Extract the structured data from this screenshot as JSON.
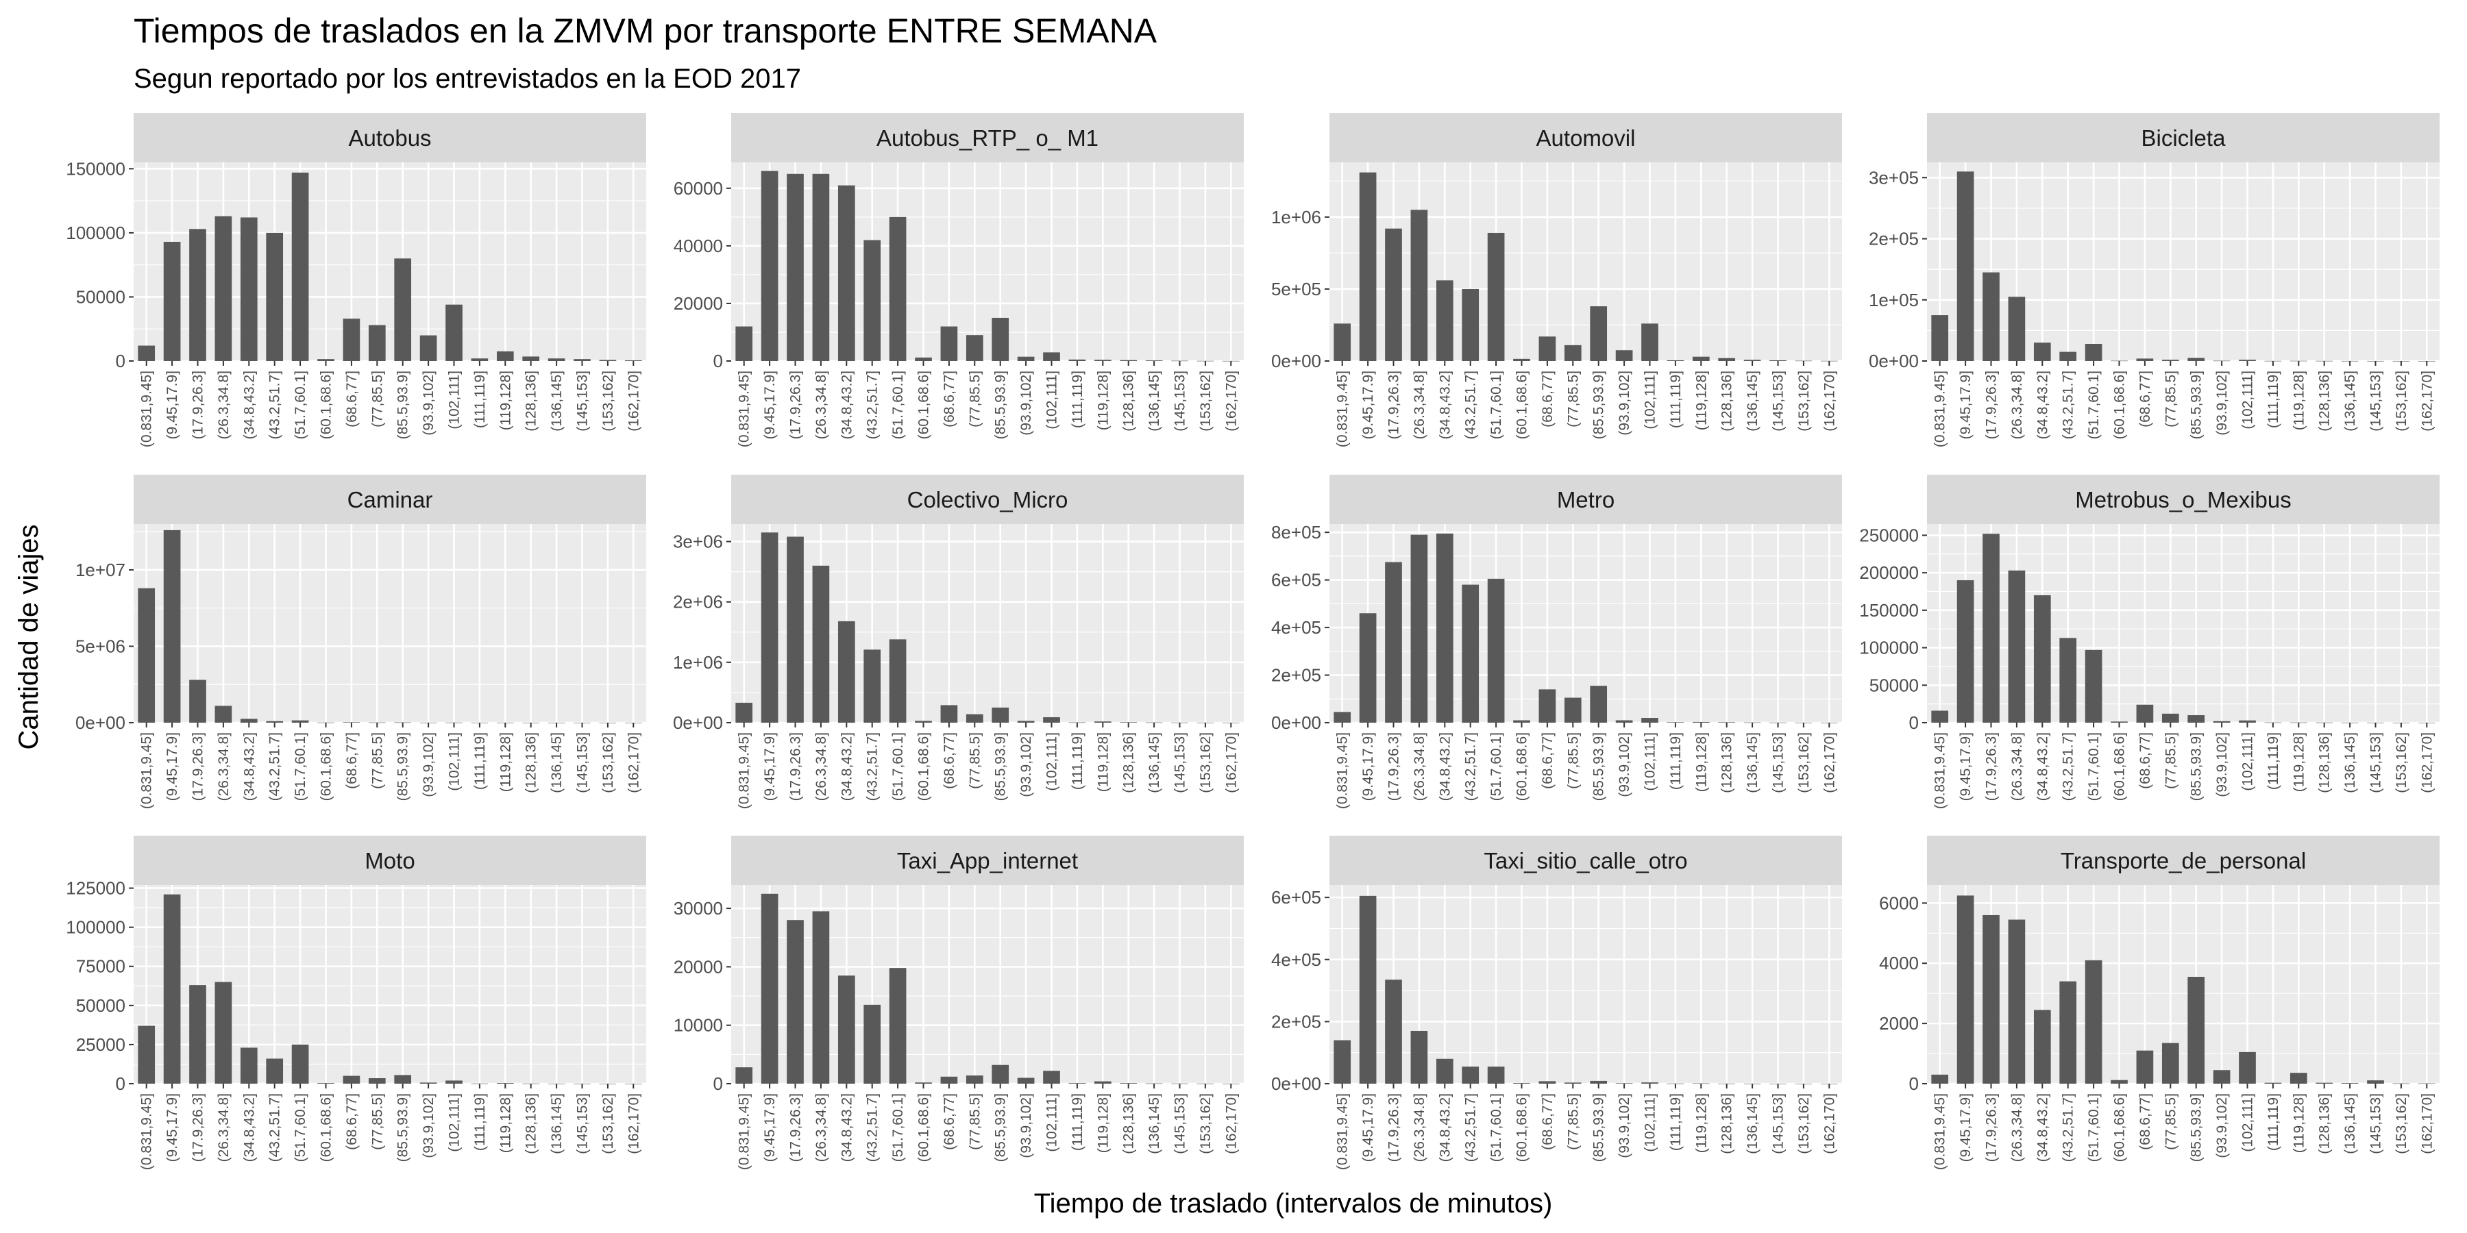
{
  "chart_data": {
    "type": "bar",
    "layout": "facet-grid",
    "title": "Tiempos de traslados en la ZMVM por transporte ENTRE SEMANA",
    "subtitle": "Segun reportado por los entrevistados en la EOD 2017",
    "xlabel": "Tiempo de traslado (intervalos de minutos)",
    "ylabel": "Cantidad de viajes",
    "grid": true,
    "colors": {
      "panel_bg": "#ebebeb",
      "strip_bg": "#d9d9d9",
      "bar": "#595959",
      "grid": "#ffffff"
    },
    "categories": [
      "(0.831,9.45]",
      "(9.45,17.9]",
      "(17.9,26.3]",
      "(26.3,34.8]",
      "(34.8,43.2]",
      "(43.2,51.7]",
      "(51.7,60.1]",
      "(60.1,68.6]",
      "(68.6,77]",
      "(77,85.5]",
      "(85.5,93.9]",
      "(93.9,102]",
      "(102,111]",
      "(111,119]",
      "(119,128]",
      "(128,136]",
      "(136,145]",
      "(145,153]",
      "(153,162]",
      "(162,170]"
    ],
    "panels": [
      {
        "name": "Autobus",
        "ylim": [
          0,
          155000
        ],
        "yticks": [
          0,
          50000,
          100000,
          150000
        ],
        "yticklabels": [
          "0",
          "50000",
          "100000",
          "150000"
        ],
        "values": [
          12000,
          93000,
          103000,
          113000,
          112000,
          100000,
          147000,
          1500,
          33000,
          28000,
          80000,
          20000,
          44000,
          2000,
          7500,
          3500,
          2000,
          1500,
          800,
          500
        ]
      },
      {
        "name": "Autobus_RTP_ o_ M1",
        "ylim": [
          0,
          69000
        ],
        "yticks": [
          0,
          20000,
          40000,
          60000
        ],
        "yticklabels": [
          "0",
          "20000",
          "40000",
          "60000"
        ],
        "values": [
          12000,
          66000,
          65000,
          65000,
          61000,
          42000,
          50000,
          1200,
          12000,
          9000,
          15000,
          1500,
          3000,
          500,
          400,
          300,
          200,
          100,
          50,
          30
        ]
      },
      {
        "name": "Automovil",
        "ylim": [
          0,
          1380000
        ],
        "yticks": [
          0,
          500000,
          1000000
        ],
        "yticklabels": [
          "0e+00",
          "5e+05",
          "1e+06"
        ],
        "values": [
          260000,
          1310000,
          920000,
          1050000,
          560000,
          500000,
          890000,
          15000,
          170000,
          110000,
          380000,
          75000,
          260000,
          5000,
          30000,
          20000,
          8000,
          5000,
          2000,
          1000
        ]
      },
      {
        "name": "Bicicleta",
        "ylim": [
          0,
          325000
        ],
        "yticks": [
          0,
          100000,
          200000,
          300000
        ],
        "yticklabels": [
          "0e+00",
          "1e+05",
          "2e+05",
          "3e+05"
        ],
        "values": [
          75000,
          310000,
          145000,
          105000,
          30000,
          15000,
          28000,
          500,
          4000,
          2000,
          5000,
          500,
          2000,
          200,
          300,
          200,
          100,
          50,
          30,
          20
        ]
      },
      {
        "name": "Caminar",
        "ylim": [
          0,
          13000000
        ],
        "yticks": [
          0,
          5000000,
          10000000
        ],
        "yticklabels": [
          "0e+00",
          "5e+06",
          "1e+07"
        ],
        "values": [
          8800000,
          12600000,
          2800000,
          1100000,
          250000,
          100000,
          150000,
          10000,
          30000,
          15000,
          20000,
          5000,
          8000,
          2000,
          2000,
          1000,
          500,
          300,
          200,
          100
        ]
      },
      {
        "name": "Colectivo_Micro",
        "ylim": [
          0,
          3290000
        ],
        "yticks": [
          0,
          1000000,
          2000000,
          3000000
        ],
        "yticklabels": [
          "0e+00",
          "1e+06",
          "2e+06",
          "3e+06"
        ],
        "values": [
          330000,
          3150000,
          3080000,
          2600000,
          1680000,
          1210000,
          1380000,
          30000,
          290000,
          140000,
          250000,
          30000,
          90000,
          5000,
          20000,
          8000,
          4000,
          2000,
          1000,
          500
        ]
      },
      {
        "name": "Metro",
        "ylim": [
          0,
          835000
        ],
        "yticks": [
          0,
          200000,
          400000,
          600000,
          800000
        ],
        "yticklabels": [
          "0e+00",
          "2e+05",
          "4e+05",
          "6e+05",
          "8e+05"
        ],
        "values": [
          45000,
          460000,
          675000,
          790000,
          795000,
          580000,
          605000,
          10000,
          140000,
          105000,
          155000,
          10000,
          20000,
          2000,
          3000,
          2000,
          1000,
          500,
          300,
          200
        ]
      },
      {
        "name": "Metrobus_o_Mexibus",
        "ylim": [
          0,
          265000
        ],
        "yticks": [
          0,
          50000,
          100000,
          150000,
          200000,
          250000
        ],
        "yticklabels": [
          "0",
          "50000",
          "100000",
          "150000",
          "200000",
          "250000"
        ],
        "values": [
          16000,
          190000,
          252000,
          203000,
          170000,
          113000,
          97000,
          1500,
          24000,
          12000,
          10000,
          2000,
          3000,
          300,
          300,
          200,
          100,
          50,
          30,
          20
        ]
      },
      {
        "name": "Moto",
        "ylim": [
          0,
          127000
        ],
        "yticks": [
          0,
          25000,
          50000,
          75000,
          100000,
          125000
        ],
        "yticklabels": [
          "0",
          "25000",
          "50000",
          "75000",
          "100000",
          "125000"
        ],
        "values": [
          37000,
          121000,
          63000,
          65000,
          23000,
          16000,
          25000,
          400,
          5000,
          3500,
          5500,
          700,
          2000,
          100,
          400,
          100,
          50,
          30,
          20,
          10
        ]
      },
      {
        "name": "Taxi_App_internet",
        "ylim": [
          0,
          34000
        ],
        "yticks": [
          0,
          10000,
          20000,
          30000
        ],
        "yticklabels": [
          "0",
          "10000",
          "20000",
          "30000"
        ],
        "values": [
          2800,
          32500,
          28000,
          29500,
          18500,
          13500,
          19800,
          200,
          1200,
          1400,
          3200,
          1000,
          2200,
          100,
          400,
          100,
          50,
          30,
          20,
          10
        ]
      },
      {
        "name": "Taxi_sitio_calle_otro",
        "ylim": [
          0,
          640000
        ],
        "yticks": [
          0,
          200000,
          400000,
          600000
        ],
        "yticklabels": [
          "0e+00",
          "2e+05",
          "4e+05",
          "6e+05"
        ],
        "values": [
          140000,
          605000,
          335000,
          170000,
          80000,
          55000,
          55000,
          2000,
          8000,
          3500,
          9000,
          1500,
          4000,
          500,
          1000,
          300,
          200,
          100,
          50,
          30
        ]
      },
      {
        "name": "Transporte_de_personal",
        "ylim": [
          0,
          6600
        ],
        "yticks": [
          0,
          2000,
          4000,
          6000
        ],
        "yticklabels": [
          "0",
          "2000",
          "4000",
          "6000"
        ],
        "values": [
          300,
          6250,
          5600,
          5450,
          2450,
          3400,
          4100,
          120,
          1100,
          1350,
          3550,
          450,
          1050,
          30,
          360,
          30,
          20,
          110,
          10,
          10
        ]
      }
    ]
  }
}
